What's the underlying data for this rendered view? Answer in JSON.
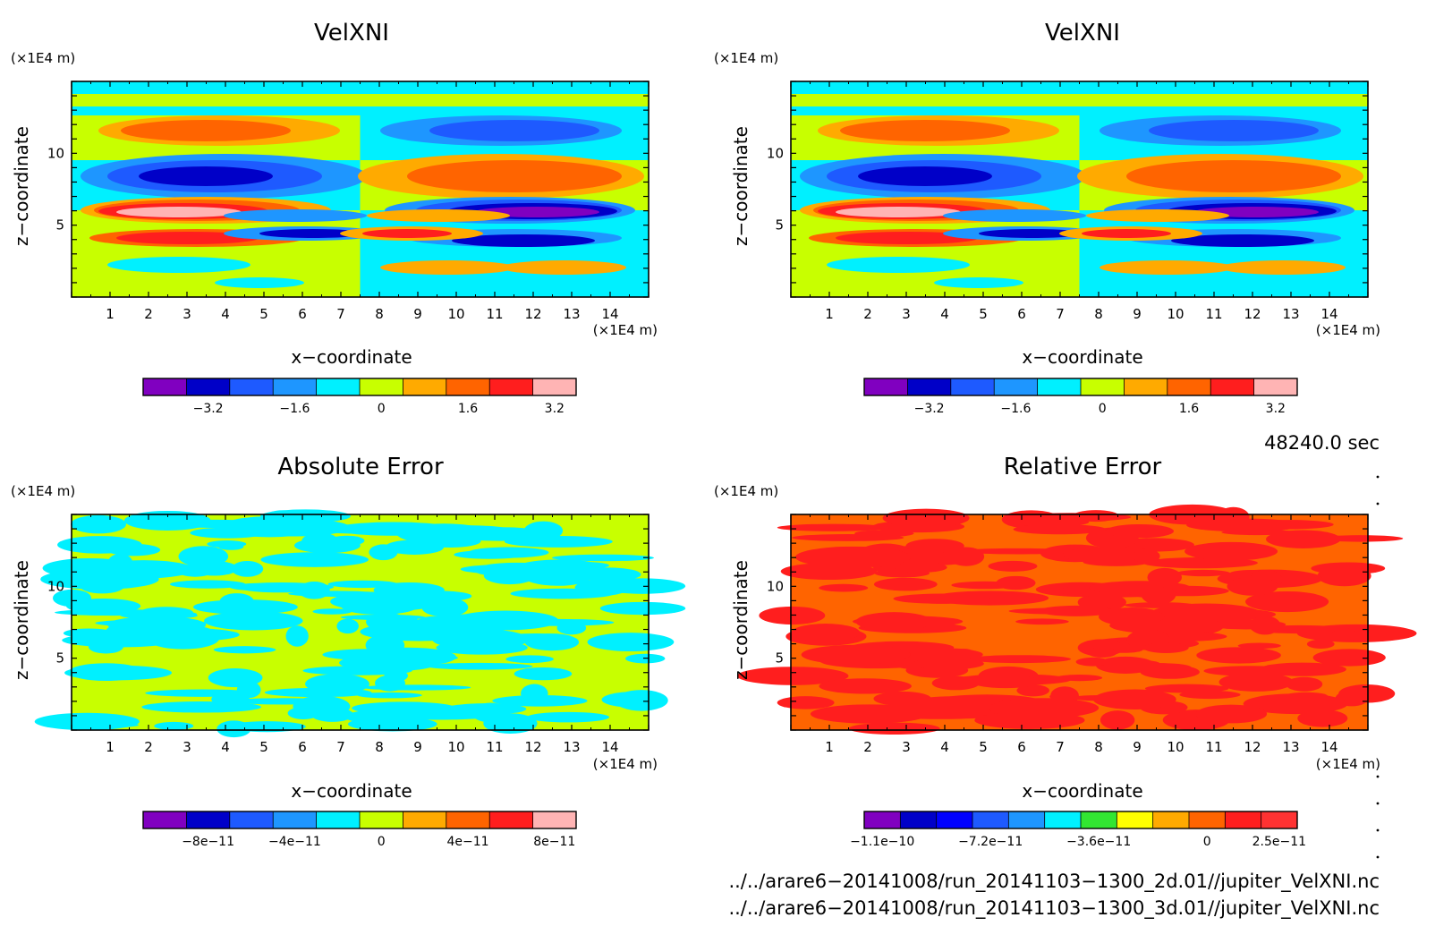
{
  "panels": [
    {
      "id": "top-left",
      "title": "VelXNI",
      "unit_label": "(×1E4 m)",
      "xunit_label": "(×1E4 m)",
      "xlabel": "x−coordinate",
      "ylabel": "z−coordinate",
      "xticks": [
        "1",
        "2",
        "3",
        "4",
        "5",
        "6",
        "7",
        "8",
        "9",
        "10",
        "11",
        "12",
        "13",
        "14"
      ],
      "yticks": [
        "5",
        "10"
      ],
      "colorbar": {
        "colors": [
          "#8000c0",
          "#0000c8",
          "#1e5aff",
          "#1e96ff",
          "#00f0ff",
          "#c8ff00",
          "#ffaa00",
          "#ff6400",
          "#ff1e1e",
          "#ffb4b4"
        ],
        "tick_labels": [
          "−3.2",
          "−1.6",
          "0",
          "1.6",
          "3.2"
        ],
        "tick_slots": [
          1,
          3,
          5,
          7,
          9
        ]
      }
    },
    {
      "id": "top-right",
      "title": "VelXNI",
      "unit_label": "(×1E4 m)",
      "xunit_label": "(×1E4 m)",
      "xlabel": "x−coordinate",
      "ylabel": "z−coordinate",
      "xticks": [
        "1",
        "2",
        "3",
        "4",
        "5",
        "6",
        "7",
        "8",
        "9",
        "10",
        "11",
        "12",
        "13",
        "14"
      ],
      "yticks": [
        "5",
        "10"
      ],
      "colorbar": {
        "colors": [
          "#8000c0",
          "#0000c8",
          "#1e5aff",
          "#1e96ff",
          "#00f0ff",
          "#c8ff00",
          "#ffaa00",
          "#ff6400",
          "#ff1e1e",
          "#ffb4b4"
        ],
        "tick_labels": [
          "−3.2",
          "−1.6",
          "0",
          "1.6",
          "3.2"
        ],
        "tick_slots": [
          1,
          3,
          5,
          7,
          9
        ]
      }
    },
    {
      "id": "bottom-left",
      "title": "Absolute Error",
      "unit_label": "(×1E4 m)",
      "xunit_label": "(×1E4 m)",
      "xlabel": "x−coordinate",
      "ylabel": "z−coordinate",
      "xticks": [
        "1",
        "2",
        "3",
        "4",
        "5",
        "6",
        "7",
        "8",
        "9",
        "10",
        "11",
        "12",
        "13",
        "14"
      ],
      "yticks": [
        "5",
        "10"
      ],
      "colorbar": {
        "colors": [
          "#8000c0",
          "#0000c8",
          "#1e5aff",
          "#1e96ff",
          "#00f0ff",
          "#c8ff00",
          "#ffaa00",
          "#ff6400",
          "#ff1e1e",
          "#ffb4b4"
        ],
        "tick_labels": [
          "−8e−11",
          "−4e−11",
          "0",
          "4e−11",
          "8e−11"
        ],
        "tick_slots": [
          1,
          3,
          5,
          7,
          9
        ]
      }
    },
    {
      "id": "bottom-right",
      "title": "Relative Error",
      "unit_label": "(×1E4 m)",
      "xunit_label": "(×1E4 m)",
      "xlabel": "x−coordinate",
      "ylabel": "z−coordinate",
      "xticks": [
        "1",
        "2",
        "3",
        "4",
        "5",
        "6",
        "7",
        "8",
        "9",
        "10",
        "11",
        "12",
        "13",
        "14"
      ],
      "yticks": [
        "5",
        "10"
      ],
      "colorbar": {
        "colors": [
          "#8000c0",
          "#0000c8",
          "#0000ff",
          "#1e5aff",
          "#1e96ff",
          "#00f0ff",
          "#32e632",
          "#ffff00",
          "#ffaa00",
          "#ff6400",
          "#ff1e1e",
          "#ff3232"
        ],
        "tick_labels": [
          "−1.1e−10",
          "−7.2e−11",
          "−3.6e−11",
          "0",
          "2.5e−11"
        ],
        "tick_slots": [
          0,
          3,
          6,
          9,
          11
        ]
      }
    }
  ],
  "time_label": "48240.0 sec",
  "file_paths": [
    "../../arare6−20141008/run_20141103−1300_2d.01//jupiter_VelXNI.nc",
    "../../arare6−20141008/run_20141103−1300_3d.01//jupiter_VelXNI.nc"
  ],
  "chart_data": [
    {
      "type": "heatmap",
      "title": "VelXNI",
      "xlabel": "x−coordinate",
      "ylabel": "z−coordinate",
      "xunit": "(×1E4 m)",
      "yunit": "(×1E4 m)",
      "xlim": [
        0,
        15
      ],
      "ylim": [
        0,
        15
      ],
      "colorbar_levels": [
        -4.0,
        -3.2,
        -2.4,
        -1.6,
        -0.8,
        0,
        0.8,
        1.6,
        2.4,
        3.2,
        4.0
      ],
      "features": [
        {
          "x_range": [
            0.8,
            7.2
          ],
          "z_range": [
            11.2,
            12.6
          ],
          "value": 1.4
        },
        {
          "x_range": [
            8.2,
            14.6
          ],
          "z_range": [
            11.2,
            12.6
          ],
          "value": -1.4
        },
        {
          "x_range": [
            0.5,
            7.4
          ],
          "z_range": [
            8.2,
            10.0
          ],
          "value": -2.2
        },
        {
          "x_range": [
            7.6,
            14.8
          ],
          "z_range": [
            8.2,
            10.0
          ],
          "value": 2.0
        },
        {
          "x_range": [
            0.8,
            6.4
          ],
          "z_range": [
            5.4,
            7.0
          ],
          "value": 3.5
        },
        {
          "x_range": [
            8.8,
            14.4
          ],
          "z_range": [
            5.4,
            7.0
          ],
          "value": -3.5
        },
        {
          "x_range": [
            1.0,
            7.2
          ],
          "z_range": [
            3.4,
            4.6
          ],
          "value": 3.0
        },
        {
          "x_range": [
            8.0,
            14.4
          ],
          "z_range": [
            3.4,
            4.6
          ],
          "value": -2.6
        }
      ]
    },
    {
      "type": "heatmap",
      "title": "VelXNI",
      "xlabel": "x−coordinate",
      "ylabel": "z−coordinate",
      "xunit": "(×1E4 m)",
      "yunit": "(×1E4 m)",
      "xlim": [
        0,
        15
      ],
      "ylim": [
        0,
        15
      ],
      "colorbar_levels": [
        -4.0,
        -3.2,
        -2.4,
        -1.6,
        -0.8,
        0,
        0.8,
        1.6,
        2.4,
        3.2,
        4.0
      ],
      "features": [
        {
          "x_range": [
            0.8,
            7.2
          ],
          "z_range": [
            11.2,
            12.6
          ],
          "value": 1.4
        },
        {
          "x_range": [
            8.2,
            14.6
          ],
          "z_range": [
            11.2,
            12.6
          ],
          "value": -1.4
        },
        {
          "x_range": [
            0.5,
            7.4
          ],
          "z_range": [
            8.2,
            10.0
          ],
          "value": -2.2
        },
        {
          "x_range": [
            7.6,
            14.8
          ],
          "z_range": [
            8.2,
            10.0
          ],
          "value": 2.0
        },
        {
          "x_range": [
            0.8,
            6.4
          ],
          "z_range": [
            5.4,
            7.0
          ],
          "value": 3.5
        },
        {
          "x_range": [
            8.8,
            14.4
          ],
          "z_range": [
            5.4,
            7.0
          ],
          "value": -3.5
        },
        {
          "x_range": [
            1.0,
            7.2
          ],
          "z_range": [
            3.4,
            4.6
          ],
          "value": 3.0
        },
        {
          "x_range": [
            8.0,
            14.4
          ],
          "z_range": [
            3.4,
            4.6
          ],
          "value": -2.6
        }
      ]
    },
    {
      "type": "heatmap",
      "title": "Absolute Error",
      "xlabel": "x−coordinate",
      "ylabel": "z−coordinate",
      "xunit": "(×1E4 m)",
      "yunit": "(×1E4 m)",
      "xlim": [
        0,
        15
      ],
      "ylim": [
        0,
        15
      ],
      "colorbar_levels": [
        -1e-10,
        -8e-11,
        -6e-11,
        -4e-11,
        -2e-11,
        0,
        2e-11,
        4e-11,
        6e-11,
        8e-11,
        1e-10
      ],
      "values_present": [
        -1e-11,
        1e-11
      ]
    },
    {
      "type": "heatmap",
      "title": "Relative Error",
      "xlabel": "x−coordinate",
      "ylabel": "z−coordinate",
      "xunit": "(×1E4 m)",
      "yunit": "(×1E4 m)",
      "xlim": [
        0,
        15
      ],
      "ylim": [
        0,
        15
      ],
      "colorbar_tick_values": [
        -1.1e-10,
        -7.2e-11,
        -3.6e-11,
        0,
        2.5e-11
      ],
      "values_present": [
        1e-11,
        1.8e-11
      ]
    }
  ]
}
